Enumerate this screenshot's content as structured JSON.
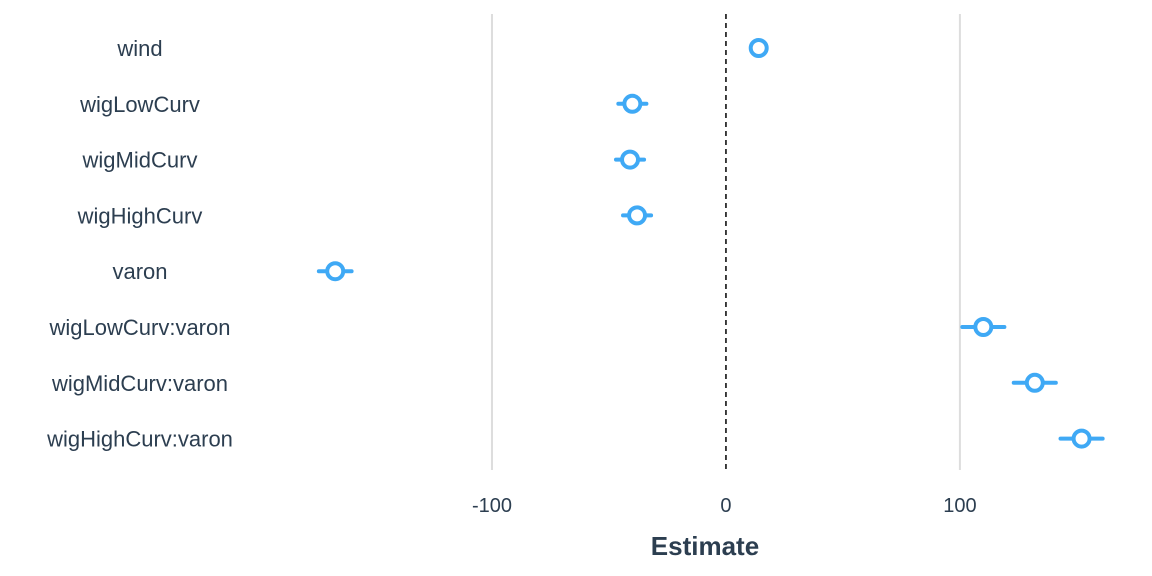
{
  "chart_data": {
    "type": "scatter",
    "subtype": "coefficient-plot",
    "title": "",
    "xlabel": "Estimate",
    "ylabel": "",
    "xlim": [
      -203,
      165
    ],
    "xticks": [
      -100,
      0,
      100
    ],
    "xtick_labels": [
      "-100",
      "0",
      "100"
    ],
    "reference_line": {
      "x": 0,
      "style": "dashed",
      "color": "#000000"
    },
    "grid": "vertical major only",
    "legend": "none",
    "marker": {
      "shape": "open-circle",
      "color": "#3fa9f5"
    },
    "categories": [
      "wind",
      "wigLowCurv",
      "wigMidCurv",
      "wigHighCurv",
      "varon",
      "wigLowCurv:varon",
      "wigMidCurv:varon",
      "wigHighCurv:varon"
    ],
    "estimates": [
      14,
      -40,
      -41,
      -38,
      -167,
      110,
      132,
      152
    ],
    "ci_low": [
      14,
      -46,
      -47,
      -44,
      -174,
      101,
      123,
      143
    ],
    "ci_high": [
      14,
      -34,
      -35,
      -32,
      -160,
      119,
      141,
      161
    ]
  },
  "colors": {
    "point": "#3fa9f5",
    "grid": "#dddddd",
    "text": "#2c3e50",
    "background": "#ffffff"
  }
}
